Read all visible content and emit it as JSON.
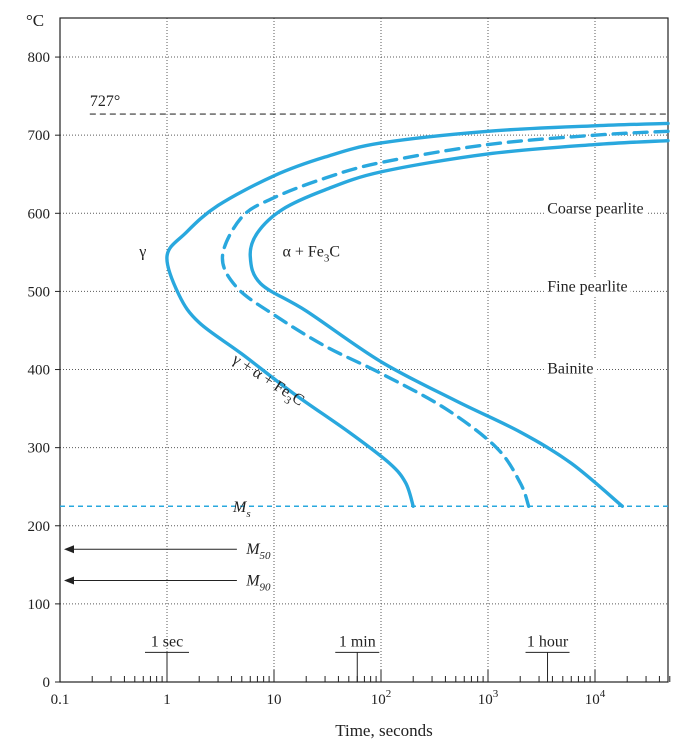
{
  "chart_data": {
    "type": "line",
    "y_unit_label": "°C",
    "xlabel": "Time, seconds",
    "x_scale": "log",
    "xlim": [
      0.1,
      50000
    ],
    "ylim": [
      0,
      850
    ],
    "x_ticks": [
      {
        "value": 0.1,
        "label": "0.1",
        "sup": ""
      },
      {
        "value": 1,
        "label": "1",
        "sup": ""
      },
      {
        "value": 10,
        "label": "10",
        "sup": ""
      },
      {
        "value": 100,
        "label": "10",
        "sup": "2"
      },
      {
        "value": 1000,
        "label": "10",
        "sup": "3"
      },
      {
        "value": 10000,
        "label": "10",
        "sup": "4"
      }
    ],
    "y_ticks": [
      0,
      100,
      200,
      300,
      400,
      500,
      600,
      700,
      800
    ],
    "grid": true,
    "time_markers": [
      {
        "label": "1 sec",
        "value": 1
      },
      {
        "label": "1 min",
        "value": 60
      },
      {
        "label": "1 hour",
        "value": 3600
      }
    ],
    "eutectoid": {
      "label": "727°",
      "value": 727
    },
    "ms": {
      "label": "M",
      "sub": "s",
      "value": 225
    },
    "arrows": [
      {
        "label": "M",
        "sub": "50",
        "value": 170
      },
      {
        "label": "M",
        "sub": "90",
        "value": 130
      }
    ],
    "series": [
      {
        "style": "solid",
        "points": [
          [
            50000,
            715
          ],
          [
            10000,
            712
          ],
          [
            1000,
            705
          ],
          [
            100,
            690
          ],
          [
            30,
            672
          ],
          [
            10,
            648
          ],
          [
            3,
            610
          ],
          [
            1.5,
            575
          ],
          [
            1,
            545
          ],
          [
            1.3,
            495
          ],
          [
            2,
            460
          ],
          [
            5,
            420
          ],
          [
            15,
            370
          ],
          [
            50,
            320
          ],
          [
            120,
            280
          ],
          [
            170,
            255
          ],
          [
            200,
            225
          ]
        ]
      },
      {
        "style": "dashed",
        "points": [
          [
            50000,
            705
          ],
          [
            10000,
            700
          ],
          [
            1000,
            688
          ],
          [
            100,
            665
          ],
          [
            30,
            645
          ],
          [
            10,
            620
          ],
          [
            5,
            595
          ],
          [
            3.3,
            545
          ],
          [
            4.5,
            505
          ],
          [
            10,
            470
          ],
          [
            30,
            430
          ],
          [
            100,
            395
          ],
          [
            400,
            350
          ],
          [
            1200,
            300
          ],
          [
            2000,
            255
          ],
          [
            2400,
            225
          ]
        ]
      },
      {
        "style": "solid",
        "points": [
          [
            50000,
            693
          ],
          [
            10000,
            688
          ],
          [
            1000,
            676
          ],
          [
            100,
            653
          ],
          [
            30,
            630
          ],
          [
            12,
            605
          ],
          [
            7,
            575
          ],
          [
            6,
            545
          ],
          [
            7.5,
            510
          ],
          [
            20,
            475
          ],
          [
            100,
            410
          ],
          [
            500,
            360
          ],
          [
            2000,
            320
          ],
          [
            6000,
            280
          ],
          [
            18000,
            225
          ]
        ]
      }
    ],
    "regions": [
      {
        "label": "γ",
        "x": 0.55,
        "y": 545
      },
      {
        "label": "α  + Fe",
        "sub": "3",
        "tail": "C",
        "x": 12,
        "y": 545
      },
      {
        "label": "Coarse pearlite",
        "x": 5500,
        "y": 600
      },
      {
        "label": "Fine pearlite",
        "x": 5500,
        "y": 500
      },
      {
        "label": "Bainite",
        "x": 5500,
        "y": 395
      },
      {
        "label": "γ + α + Fe",
        "sub": "3",
        "tail": "C",
        "x": 4,
        "y": 410
      }
    ],
    "colors": {
      "curve": "#29a8de",
      "ms_line": "#29a8de",
      "grid": "#5a5a5a",
      "axis": "#222222",
      "eutectoid_line": "#333333"
    }
  }
}
